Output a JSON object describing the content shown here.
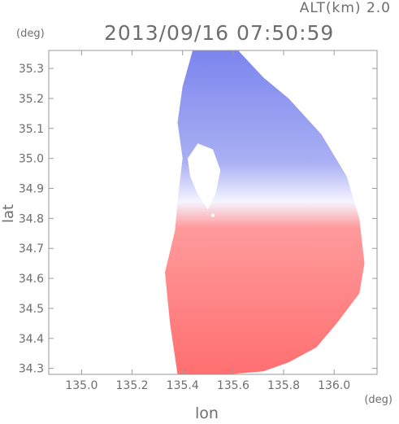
{
  "header": {
    "altitude": "ALT(km)  2.0",
    "timestamp": "2013/09/16  07:50:59"
  },
  "units": {
    "y": "(deg)",
    "x": "(deg)"
  },
  "chart_data": {
    "type": "heatmap",
    "title": "2013/09/16  07:50:59",
    "subtitle": "ALT(km)  2.0",
    "xlabel": "lon",
    "ylabel": "lat",
    "x_unit": "(deg)",
    "y_unit": "(deg)",
    "xlim": [
      134.87,
      136.17
    ],
    "ylim": [
      34.28,
      35.36
    ],
    "x_ticks": [
      135.0,
      135.2,
      135.4,
      135.6,
      135.8,
      136.0
    ],
    "x_tick_labels": [
      "135.0",
      "135.2",
      "135.4",
      "135.6",
      "135.8",
      "136.0"
    ],
    "y_ticks": [
      34.3,
      34.4,
      34.5,
      34.6,
      34.7,
      34.8,
      34.9,
      35.0,
      35.1,
      35.2,
      35.3
    ],
    "y_tick_labels": [
      "34.3",
      "34.4",
      "34.5",
      "34.6",
      "34.7",
      "34.8",
      "34.9",
      "35.0",
      "35.1",
      "35.2",
      "35.3"
    ],
    "grid": false,
    "radar_center": {
      "lon": 135.52,
      "lat": 34.81
    },
    "colors": {
      "toward": "#7b84ee",
      "away": "#ff6f70",
      "neutral": "#f4f4ff"
    },
    "echo_region": {
      "north_boundary": [
        {
          "lon": 135.38,
          "lat": 34.28
        },
        {
          "lon": 135.35,
          "lat": 34.45
        },
        {
          "lon": 135.33,
          "lat": 34.62
        },
        {
          "lon": 135.37,
          "lat": 34.76
        },
        {
          "lon": 135.38,
          "lat": 34.86
        },
        {
          "lon": 135.4,
          "lat": 35.0
        },
        {
          "lon": 135.38,
          "lat": 35.12
        },
        {
          "lon": 135.4,
          "lat": 35.24
        },
        {
          "lon": 135.44,
          "lat": 35.36
        },
        {
          "lon": 135.62,
          "lat": 35.36
        },
        {
          "lon": 135.72,
          "lat": 35.27
        },
        {
          "lon": 135.82,
          "lat": 35.2
        },
        {
          "lon": 135.95,
          "lat": 35.08
        },
        {
          "lon": 136.05,
          "lat": 34.94
        },
        {
          "lon": 136.1,
          "lat": 34.8
        },
        {
          "lon": 136.12,
          "lat": 34.65
        },
        {
          "lon": 136.1,
          "lat": 34.55
        },
        {
          "lon": 136.01,
          "lat": 34.45
        },
        {
          "lon": 135.93,
          "lat": 34.37
        },
        {
          "lon": 135.82,
          "lat": 34.32
        },
        {
          "lon": 135.72,
          "lat": 34.29
        },
        {
          "lon": 135.58,
          "lat": 34.28
        }
      ],
      "clear_hole": [
        {
          "lon": 135.42,
          "lat": 35.0
        },
        {
          "lon": 135.46,
          "lat": 35.05
        },
        {
          "lon": 135.52,
          "lat": 35.03
        },
        {
          "lon": 135.55,
          "lat": 34.96
        },
        {
          "lon": 135.53,
          "lat": 34.88
        },
        {
          "lon": 135.5,
          "lat": 34.83
        },
        {
          "lon": 135.46,
          "lat": 34.88
        },
        {
          "lon": 135.43,
          "lat": 34.94
        }
      ]
    }
  }
}
